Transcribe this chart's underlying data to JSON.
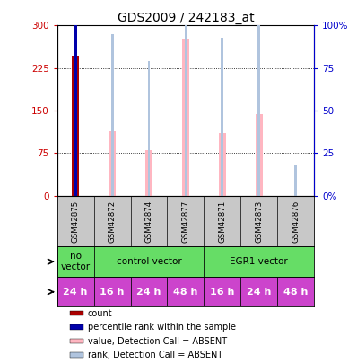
{
  "title": "GDS2009 / 242183_at",
  "samples": [
    "GSM42875",
    "GSM42872",
    "GSM42874",
    "GSM42877",
    "GSM42871",
    "GSM42873",
    "GSM42876"
  ],
  "time_labels": [
    "24 h",
    "16 h",
    "24 h",
    "48 h",
    "16 h",
    "24 h",
    "48 h"
  ],
  "time_color": "#CC44CC",
  "infection_spans": [
    {
      "start": 0,
      "end": 1,
      "label": "no\nvector"
    },
    {
      "start": 1,
      "end": 4,
      "label": "control vector"
    },
    {
      "start": 4,
      "end": 7,
      "label": "EGR1 vector"
    }
  ],
  "infection_color": "#66DD66",
  "bar_data": [
    {
      "value": 247,
      "rank": 155,
      "absent": false
    },
    {
      "value": 113,
      "rank": 95,
      "absent": true
    },
    {
      "value": 80,
      "rank": 79,
      "absent": true
    },
    {
      "value": 277,
      "rank": 155,
      "absent": true
    },
    {
      "value": 110,
      "rank": 93,
      "absent": true
    },
    {
      "value": 143,
      "rank": 113,
      "absent": true
    },
    {
      "value": 0,
      "rank": 18,
      "absent": true
    }
  ],
  "count_color": "#AA0000",
  "rank_color": "#0000AA",
  "absent_value_color": "#FFB6C1",
  "absent_rank_color": "#B0C4DE",
  "ylim_left": [
    0,
    300
  ],
  "ylim_right": [
    0,
    100
  ],
  "yticks_left": [
    0,
    75,
    150,
    225,
    300
  ],
  "yticks_right": [
    0,
    25,
    50,
    75,
    100
  ],
  "ytick_labels_right": [
    "0%",
    "25",
    "50",
    "75",
    "100%"
  ],
  "grid_lines": [
    75,
    150,
    225
  ],
  "left_axis_color": "#CC0000",
  "right_axis_color": "#0000CC",
  "sample_bg_color": "#C8C8C8",
  "legend_items": [
    {
      "color": "#AA0000",
      "label": "count"
    },
    {
      "color": "#0000AA",
      "label": "percentile rank within the sample"
    },
    {
      "color": "#FFB6C1",
      "label": "value, Detection Call = ABSENT"
    },
    {
      "color": "#B0C4DE",
      "label": "rank, Detection Call = ABSENT"
    }
  ],
  "value_bar_width": 0.18,
  "rank_bar_width": 0.07
}
